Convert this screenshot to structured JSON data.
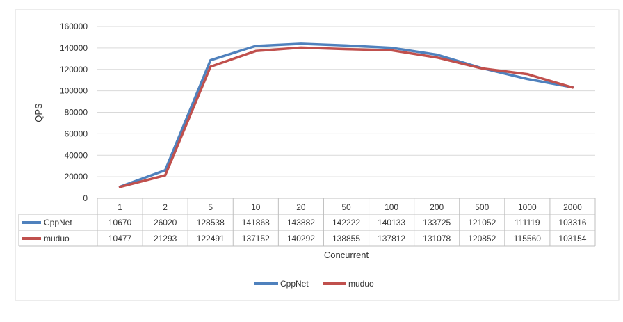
{
  "chart_data": {
    "type": "line",
    "title": "",
    "xlabel": "Concurrent",
    "ylabel": "QPS",
    "ylim": [
      0,
      160000
    ],
    "yticks": [
      0,
      20000,
      40000,
      60000,
      80000,
      100000,
      120000,
      140000,
      160000
    ],
    "grid": true,
    "legend": "bottom",
    "categories": [
      "1",
      "2",
      "5",
      "10",
      "20",
      "50",
      "100",
      "200",
      "500",
      "1000",
      "2000"
    ],
    "series": [
      {
        "name": "CppNet",
        "color": "#4f81bd",
        "values": [
          10670,
          26020,
          128538,
          141868,
          143882,
          142222,
          140133,
          133725,
          121052,
          111119,
          103316
        ]
      },
      {
        "name": "muduo",
        "color": "#c0504d",
        "values": [
          10477,
          21293,
          122491,
          137152,
          140292,
          138855,
          137812,
          131078,
          120852,
          115560,
          103154
        ]
      }
    ]
  }
}
